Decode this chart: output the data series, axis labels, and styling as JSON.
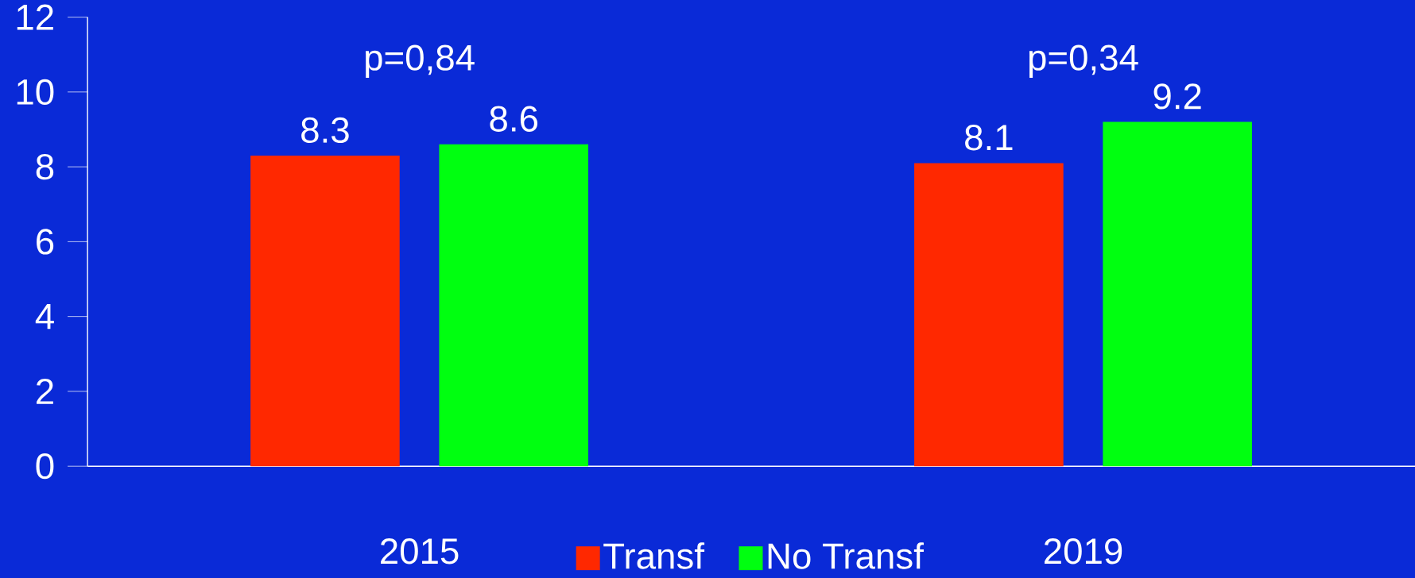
{
  "chart_data": {
    "type": "bar",
    "categories": [
      "2015",
      "2019"
    ],
    "series": [
      {
        "name": "Transf",
        "color": "#ff2800",
        "values": [
          8.3,
          8.1
        ]
      },
      {
        "name": "No Transf",
        "color": "#00ff10",
        "values": [
          8.6,
          9.2
        ]
      }
    ],
    "ylim": [
      0,
      12
    ],
    "yticks": [
      0,
      2,
      4,
      6,
      8,
      10,
      12
    ],
    "data_labels": true,
    "legend": "bottom",
    "grid": false,
    "annotations": [
      "p=0,84",
      "p=0,34"
    ]
  }
}
